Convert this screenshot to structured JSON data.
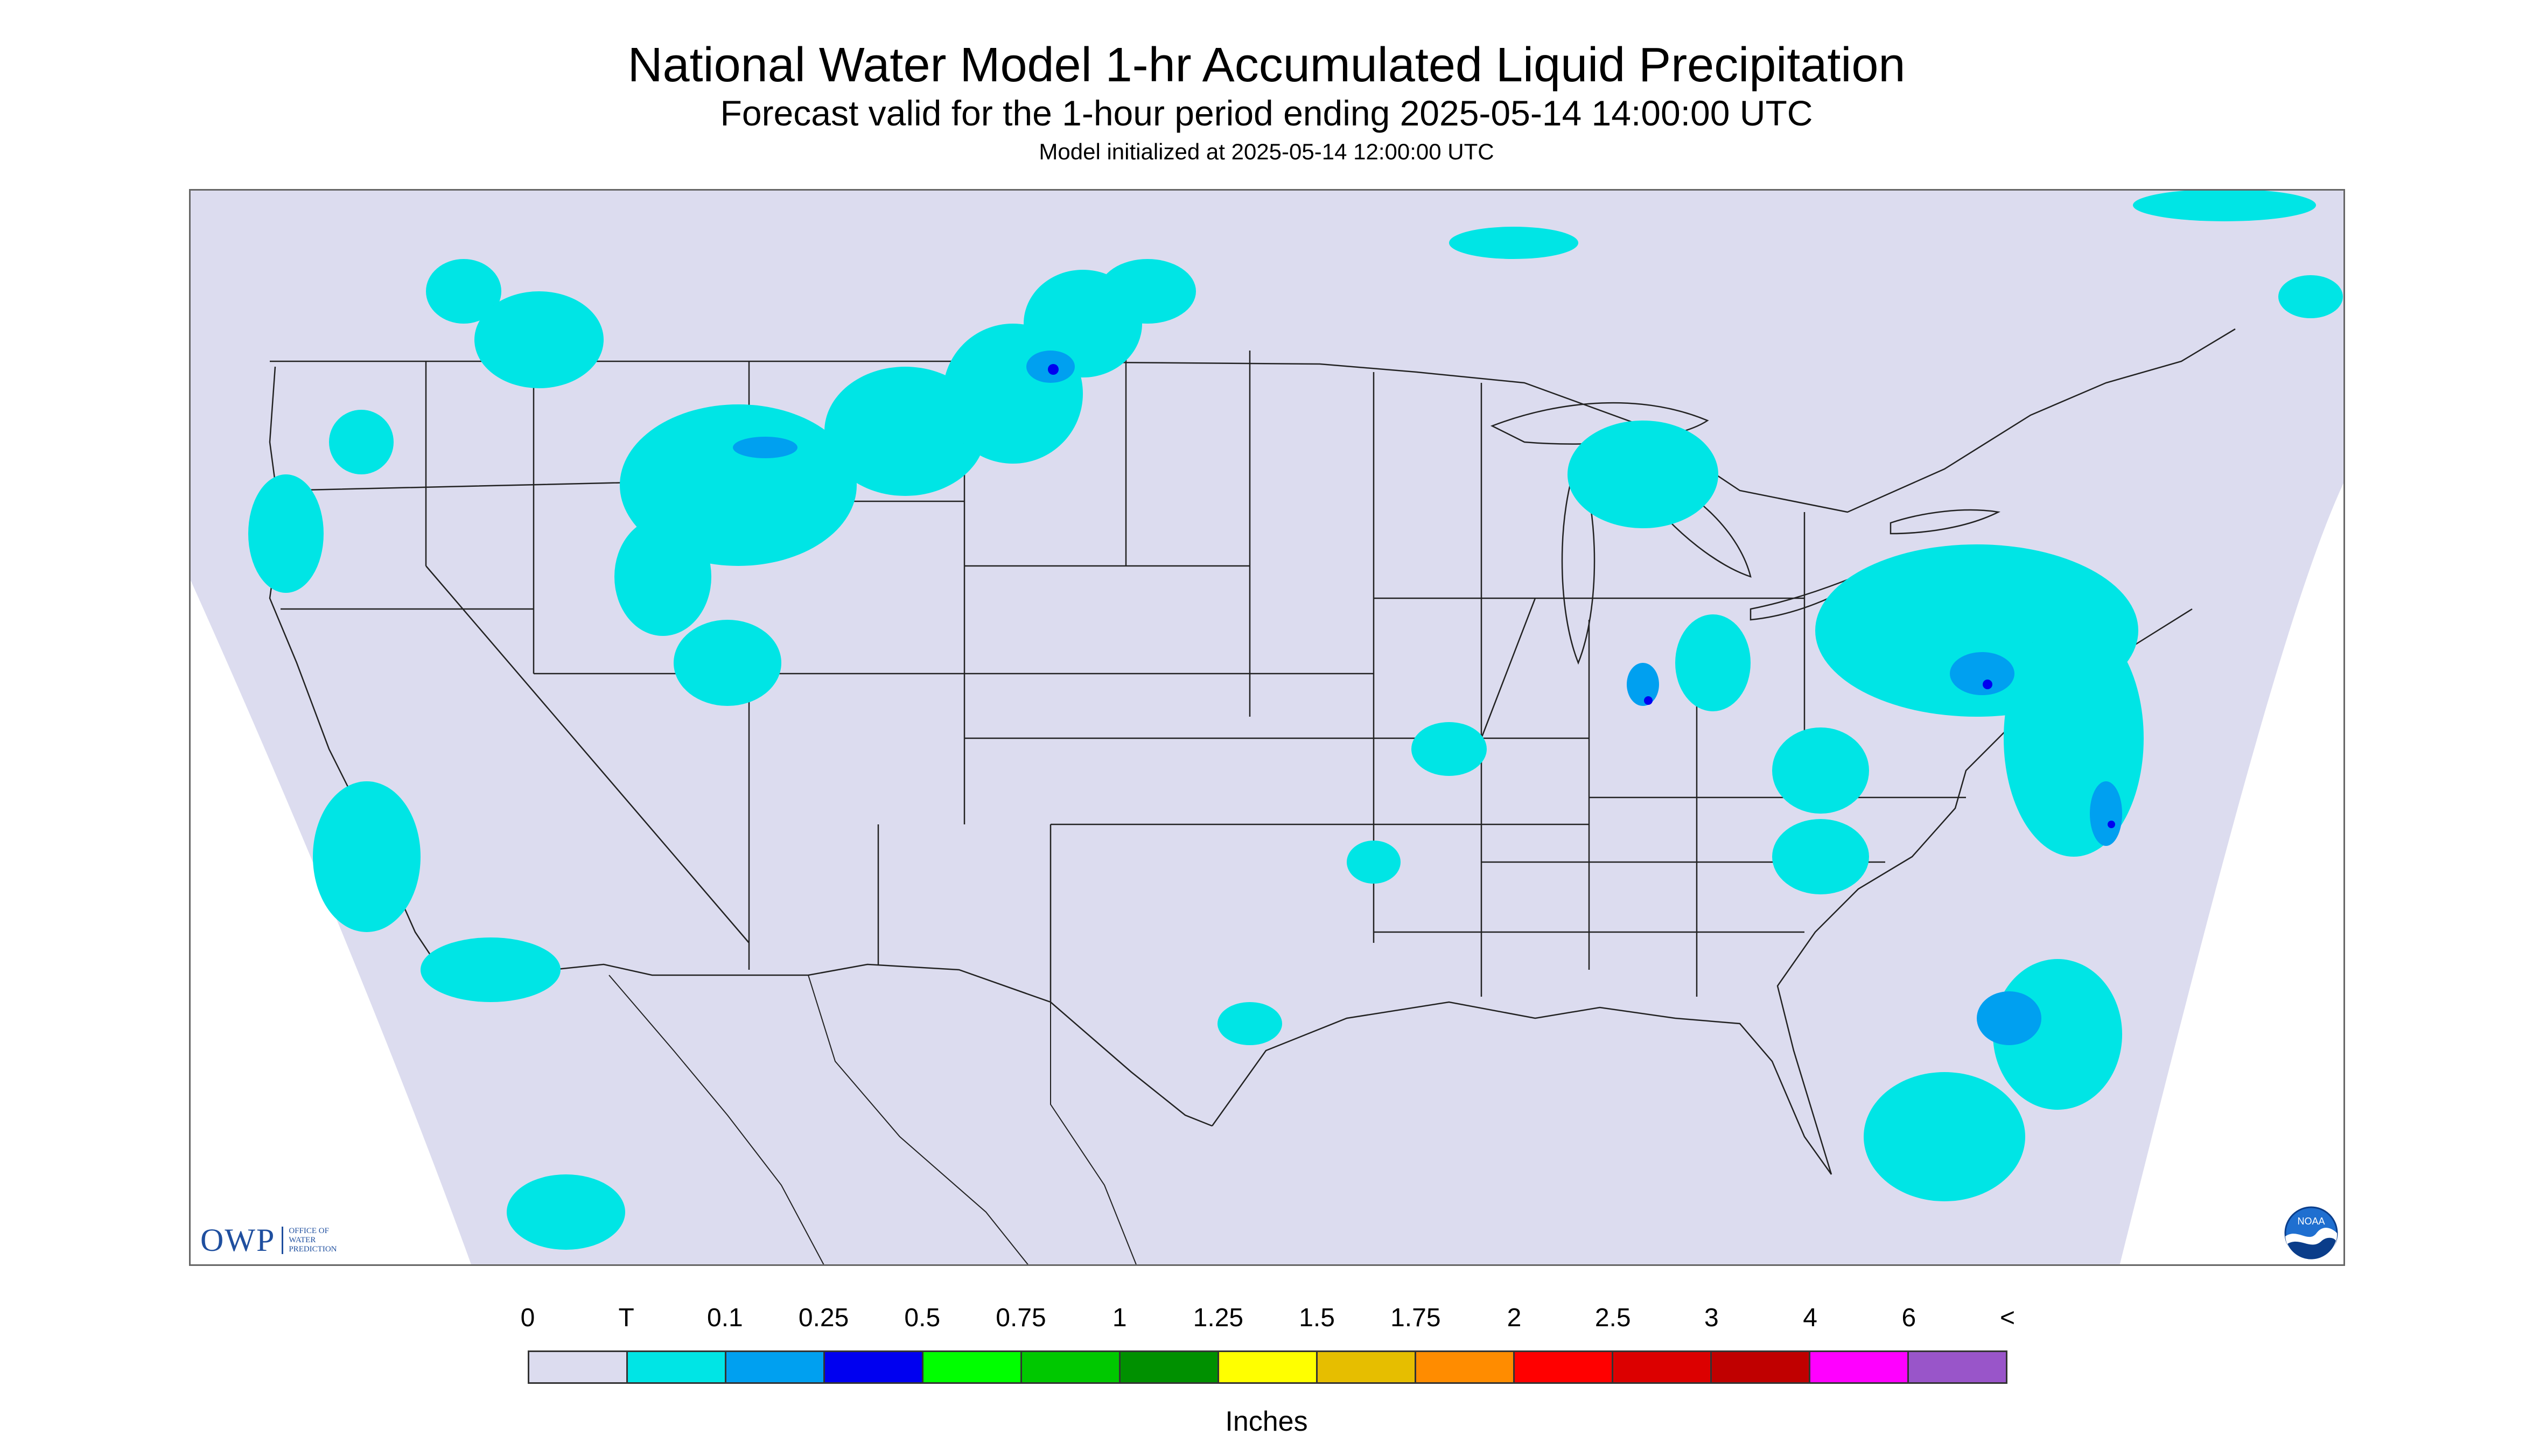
{
  "header": {
    "title": "National Water Model 1-hr Accumulated Liquid Precipitation",
    "subtitle": "Forecast valid for the 1-hour period ending 2025-05-14 14:00:00 UTC",
    "init": "Model initialized at 2025-05-14 12:00:00 UTC"
  },
  "map": {
    "background_color": "#dcdcef",
    "outside_color": "#ffffff",
    "boundary_color": "#222222"
  },
  "legend": {
    "labels": [
      "0",
      "T",
      "0.1",
      "0.25",
      "0.5",
      "0.75",
      "1",
      "1.25",
      "1.5",
      "1.75",
      "2",
      "2.5",
      "3",
      "4",
      "6",
      "<"
    ],
    "colors": [
      "#dcdcef",
      "#00e5e5",
      "#00a0f0",
      "#0000f0",
      "#00ff00",
      "#00c800",
      "#009000",
      "#ffff00",
      "#e6be00",
      "#ff8c00",
      "#ff0000",
      "#dc0000",
      "#c00000",
      "#ff00ff",
      "#9955c9"
    ],
    "units": "Inches"
  },
  "branding": {
    "owp_mark": "OWP",
    "owp_line1": "OFFICE OF",
    "owp_line2": "WATER",
    "owp_line3": "PREDICTION",
    "noaa_text": "NOAA",
    "noaa_icon": "noaa-logo-icon"
  }
}
